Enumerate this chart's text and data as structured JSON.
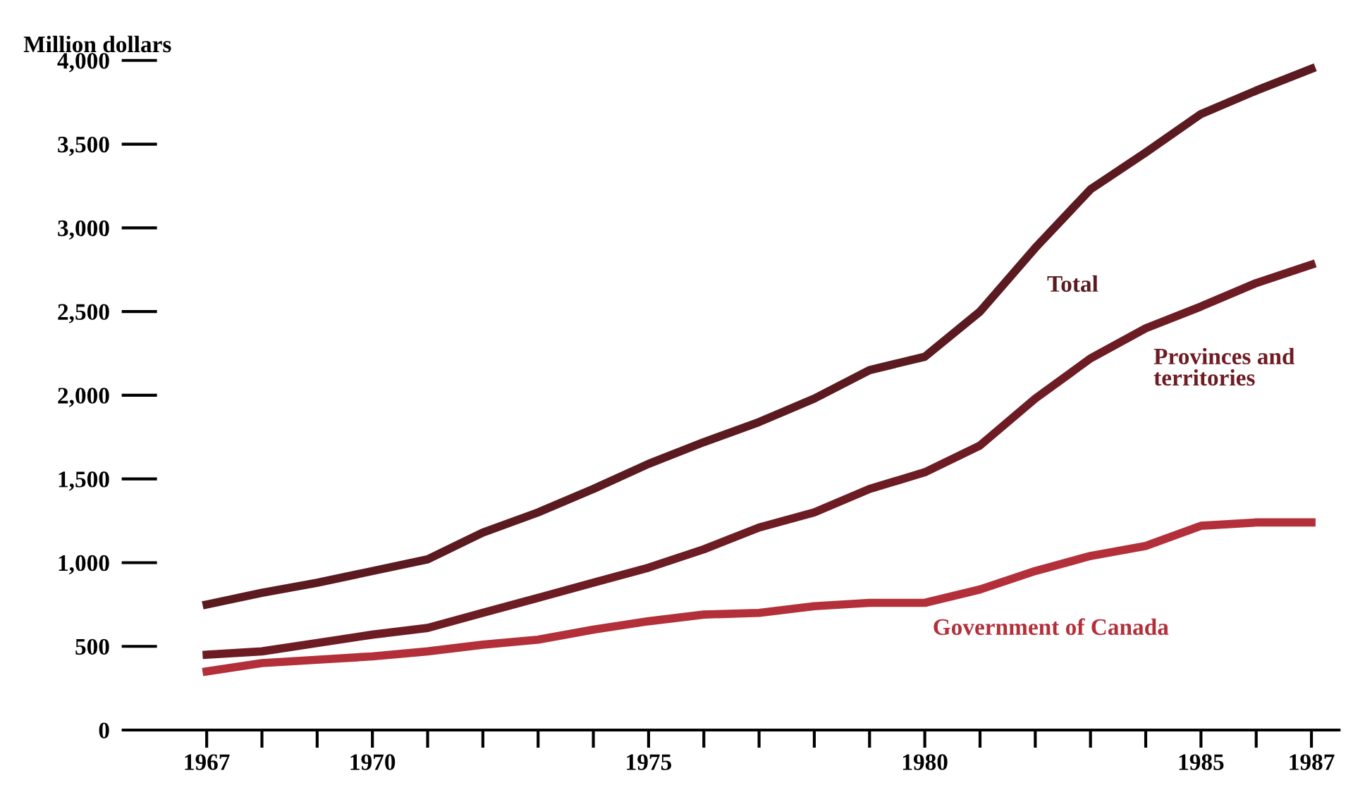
{
  "chart_data": {
    "type": "line",
    "ylabel": "Million dollars",
    "x": [
      1967,
      1968,
      1969,
      1970,
      1971,
      1972,
      1973,
      1974,
      1975,
      1976,
      1977,
      1978,
      1979,
      1980,
      1981,
      1982,
      1983,
      1984,
      1985,
      1986,
      1987
    ],
    "series": [
      {
        "name": "Total",
        "color": "#5a1a20",
        "values": [
          750,
          820,
          880,
          950,
          1020,
          1180,
          1300,
          1440,
          1590,
          1720,
          1840,
          1980,
          2150,
          2230,
          2500,
          2880,
          3230,
          3450,
          3680,
          3820,
          3950
        ]
      },
      {
        "name": "Provinces and\nterritories",
        "color": "#6e1c24",
        "values": [
          450,
          470,
          520,
          570,
          610,
          700,
          790,
          880,
          970,
          1080,
          1210,
          1300,
          1440,
          1540,
          1700,
          1980,
          2220,
          2400,
          2530,
          2670,
          2780
        ]
      },
      {
        "name": "Government of Canada",
        "color": "#b3303a",
        "values": [
          350,
          400,
          420,
          440,
          470,
          510,
          540,
          600,
          650,
          690,
          700,
          740,
          760,
          760,
          840,
          950,
          1040,
          1100,
          1220,
          1240,
          1240
        ]
      }
    ],
    "xlim": [
      1966.1,
      1987.5
    ],
    "ylim": [
      0,
      4000
    ],
    "xticks": [
      {
        "value": 1967,
        "label": "1967"
      },
      {
        "value": 1968,
        "label": null
      },
      {
        "value": 1969,
        "label": null
      },
      {
        "value": 1970,
        "label": "1970"
      },
      {
        "value": 1971,
        "label": null
      },
      {
        "value": 1972,
        "label": null
      },
      {
        "value": 1973,
        "label": null
      },
      {
        "value": 1974,
        "label": null
      },
      {
        "value": 1975,
        "label": "1975"
      },
      {
        "value": 1976,
        "label": null
      },
      {
        "value": 1977,
        "label": null
      },
      {
        "value": 1978,
        "label": null
      },
      {
        "value": 1979,
        "label": null
      },
      {
        "value": 1980,
        "label": "1980"
      },
      {
        "value": 1981,
        "label": null
      },
      {
        "value": 1982,
        "label": null
      },
      {
        "value": 1983,
        "label": null
      },
      {
        "value": 1984,
        "label": null
      },
      {
        "value": 1985,
        "label": "1985"
      },
      {
        "value": 1986,
        "label": null
      },
      {
        "value": 1987,
        "label": "1987"
      }
    ],
    "yticks": [
      {
        "value": 0,
        "label": "0"
      },
      {
        "value": 500,
        "label": "500"
      },
      {
        "value": 1000,
        "label": "1,000"
      },
      {
        "value": 1500,
        "label": "1,500"
      },
      {
        "value": 2000,
        "label": "2,000"
      },
      {
        "value": 2500,
        "label": "2,500"
      },
      {
        "value": 3000,
        "label": "3,000"
      },
      {
        "value": 3500,
        "label": "3,500"
      },
      {
        "value": 4000,
        "label": "4,000"
      }
    ],
    "grid": false,
    "legend": false,
    "marker": "none",
    "line_style": "solid"
  }
}
